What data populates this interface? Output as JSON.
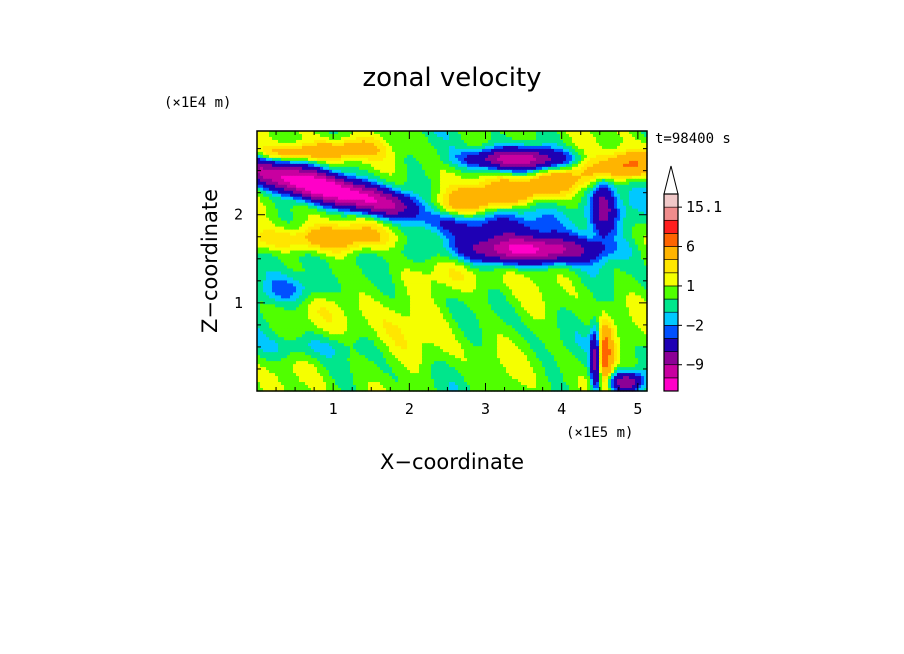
{
  "chart_data": {
    "type": "heatmap",
    "title": "zonal velocity",
    "xlabel": "X−coordinate",
    "ylabel": "Z−coordinate",
    "x_scale_label": "(×1E5 m)",
    "y_scale_label": "(×1E4 m)",
    "time_label": "t=98400 s",
    "xlim": [
      0,
      5.12
    ],
    "ylim": [
      0,
      2.95
    ],
    "x_ticks": [
      1,
      2,
      3,
      4,
      5
    ],
    "x_tick_labels": [
      "1",
      "2",
      "3",
      "4",
      "5"
    ],
    "y_ticks": [
      1,
      2
    ],
    "y_tick_labels": [
      "1",
      "2"
    ],
    "colorbar": {
      "levels": [
        -15,
        -12,
        -9,
        -6,
        -3,
        -2,
        -1,
        0,
        1,
        2,
        3,
        6,
        9,
        12,
        15.1
      ],
      "colors": [
        "#ff00c8",
        "#c800a0",
        "#8c0096",
        "#1e00b4",
        "#0050ff",
        "#00c8ff",
        "#00e68c",
        "#50ff00",
        "#f5ff00",
        "#ffe600",
        "#ffb400",
        "#ff6400",
        "#ff1e1e",
        "#f08c8c",
        "#f0c8c8"
      ],
      "over_color": "#ffffff",
      "labels": [
        {
          "value": -9,
          "text": "−9"
        },
        {
          "value": -2,
          "text": "−2"
        },
        {
          "value": 1,
          "text": "1"
        },
        {
          "value": 6,
          "text": "6"
        },
        {
          "value": 15.1,
          "text": "15.1"
        }
      ]
    },
    "features": [
      {
        "x": 0.9,
        "z": 2.3,
        "amp": -16,
        "sx": 0.85,
        "sz": 0.11,
        "tilt": -0.22
      },
      {
        "x": 3.4,
        "z": 2.63,
        "amp": -11,
        "sx": 0.42,
        "sz": 0.08,
        "tilt": 0.0
      },
      {
        "x": 3.6,
        "z": 1.6,
        "amp": -12,
        "sx": 0.55,
        "sz": 0.1,
        "tilt": 0.0
      },
      {
        "x": 3.3,
        "z": 1.85,
        "amp": -3,
        "sx": 1.2,
        "sz": 0.18,
        "tilt": 0.1
      },
      {
        "x": 4.55,
        "z": 2.1,
        "amp": -6,
        "sx": 0.1,
        "sz": 0.22,
        "tilt": 0.0
      },
      {
        "x": 0.45,
        "z": 1.15,
        "amp": -3,
        "sx": 0.35,
        "sz": 0.12,
        "tilt": 0.0
      },
      {
        "x": 3.3,
        "z": 2.25,
        "amp": 5,
        "sx": 1.1,
        "sz": 0.12,
        "tilt": 0.2
      },
      {
        "x": 0.9,
        "z": 1.72,
        "amp": 3.5,
        "sx": 0.9,
        "sz": 0.1,
        "tilt": 0.0
      },
      {
        "x": 0.55,
        "z": 2.7,
        "amp": 4,
        "sx": 0.4,
        "sz": 0.07,
        "tilt": 0.0
      },
      {
        "x": 1.2,
        "z": 2.75,
        "amp": 3,
        "sx": 0.3,
        "sz": 0.08,
        "tilt": 0.0
      },
      {
        "x": 2.6,
        "z": 1.3,
        "amp": 0.8,
        "sx": 0.6,
        "sz": 0.12,
        "tilt": 0.0
      },
      {
        "x": 1.6,
        "z": 0.8,
        "amp": 0.9,
        "sx": 0.9,
        "sz": 0.4,
        "tilt": 0.0
      },
      {
        "x": 4.55,
        "z": 0.4,
        "amp": 9,
        "sx": 0.08,
        "sz": 0.22,
        "tilt": 0.0
      },
      {
        "x": 4.45,
        "z": 0.35,
        "amp": -10,
        "sx": 0.05,
        "sz": 0.25,
        "tilt": 0.0
      },
      {
        "x": 4.85,
        "z": 0.1,
        "amp": -9,
        "sx": 0.15,
        "sz": 0.08,
        "tilt": 0.0
      },
      {
        "x": 4.9,
        "z": 2.55,
        "amp": 5,
        "sx": 0.22,
        "sz": 0.1,
        "tilt": 0.0
      },
      {
        "x": 0.6,
        "z": 0.5,
        "amp": -1.5,
        "sx": 0.5,
        "sz": 0.1,
        "tilt": 0.0
      }
    ]
  }
}
